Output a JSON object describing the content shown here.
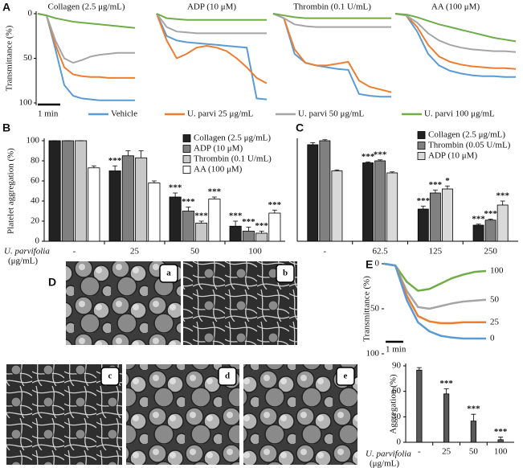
{
  "panel_labels": [
    "A",
    "B",
    "C",
    "D",
    "E"
  ],
  "chart_data": [
    {
      "type": "multiline",
      "ylabel": "Transmittance (%)",
      "ylim": [
        0,
        100
      ],
      "yticks": [
        0,
        50,
        100
      ],
      "inverted": true,
      "scale_bar": "1 min",
      "series": [
        {
          "name": "Vehicle",
          "color": "#5b9bd5"
        },
        {
          "name": "U. parvi 25 μg/mL",
          "color": "#ed7d31"
        },
        {
          "name": "U. parvi 50 μg/mL",
          "color": "#a5a5a5"
        },
        {
          "name": "U. parvi 100 μg/mL",
          "color": "#70ad47"
        }
      ],
      "panels": [
        {
          "title": "Collagen (2.5 μg/mL)",
          "values": [
            [
              0,
              2,
              40,
              80,
              92,
              95,
              96,
              97,
              97,
              97,
              97,
              97
            ],
            [
              0,
              2,
              35,
              60,
              68,
              70,
              71,
              71,
              72,
              72,
              72,
              72
            ],
            [
              0,
              2,
              30,
              50,
              55,
              52,
              48,
              46,
              45,
              44,
              44,
              44
            ],
            [
              0,
              2,
              5,
              7,
              9,
              10,
              11,
              12,
              13,
              14,
              15,
              16
            ]
          ]
        },
        {
          "title": "ADP (10 μM)",
          "values": [
            [
              0,
              25,
              30,
              32,
              33,
              34,
              35,
              36,
              37,
              38,
              95,
              96
            ],
            [
              0,
              30,
              50,
              45,
              38,
              36,
              38,
              42,
              50,
              60,
              72,
              78
            ],
            [
              0,
              15,
              20,
              21,
              22,
              22,
              22,
              22,
              22,
              22,
              22,
              22
            ],
            [
              0,
              5,
              6,
              7,
              7,
              7,
              7,
              7,
              7,
              7,
              7,
              7
            ]
          ]
        },
        {
          "title": "Thrombin (0.1 U/mL)",
          "values": [
            [
              0,
              5,
              45,
              55,
              58,
              60,
              62,
              63,
              90,
              92,
              93,
              93
            ],
            [
              0,
              5,
              40,
              55,
              58,
              58,
              56,
              54,
              75,
              82,
              85,
              88
            ],
            [
              0,
              5,
              12,
              14,
              15,
              15,
              15,
              15,
              15,
              15,
              15,
              15
            ],
            [
              0,
              2,
              4,
              5,
              5,
              5,
              5,
              5,
              5,
              5,
              5,
              5
            ]
          ]
        },
        {
          "title": "AA (100 μM)",
          "values": [
            [
              0,
              2,
              20,
              45,
              58,
              64,
              67,
              69,
              70,
              70,
              71,
              71
            ],
            [
              0,
              2,
              15,
              35,
              48,
              54,
              57,
              59,
              60,
              61,
              61,
              62
            ],
            [
              0,
              2,
              10,
              22,
              30,
              35,
              38,
              40,
              41,
              42,
              42,
              43
            ],
            [
              0,
              1,
              4,
              8,
              12,
              15,
              18,
              21,
              24,
              27,
              29,
              31
            ]
          ]
        }
      ]
    },
    {
      "type": "bar",
      "ylabel": "Platelet aggregation (%)",
      "xlabel": "U. parvifolia",
      "xlabel_unit": "(μg/mL)",
      "categories": [
        "-",
        "25",
        "50",
        "100"
      ],
      "ylim": [
        0,
        100
      ],
      "yticks": [
        0,
        20,
        40,
        60,
        80,
        100
      ],
      "legend": "upper right",
      "series": [
        {
          "name": "Collagen (2.5  μg/mL)",
          "color": "#222222",
          "values": [
            100,
            70,
            44,
            15
          ],
          "errors": [
            0,
            5,
            4,
            5
          ],
          "sig": [
            null,
            "***",
            "***",
            "***"
          ]
        },
        {
          "name": "ADP (10  μM)",
          "color": "#808080",
          "values": [
            100,
            85,
            30,
            10
          ],
          "errors": [
            0,
            5,
            4,
            4
          ],
          "sig": [
            null,
            null,
            "***",
            "***"
          ]
        },
        {
          "name": "Thrombin (0.1 U/mL)",
          "color": "#c8c8c8",
          "values": [
            100,
            83,
            18,
            8
          ],
          "errors": [
            0,
            7,
            2,
            2
          ],
          "sig": [
            null,
            null,
            "***",
            "***"
          ]
        },
        {
          "name": "AA (100 μM)",
          "color": "#ffffff",
          "values": [
            73,
            58,
            42,
            28
          ],
          "errors": [
            2,
            2,
            2,
            3
          ],
          "sig": [
            null,
            null,
            "***",
            "***"
          ]
        }
      ]
    },
    {
      "type": "bar",
      "categories": [
        "-",
        "62.5",
        "125",
        "250"
      ],
      "ylim": [
        0,
        100
      ],
      "legend": "upper right",
      "series": [
        {
          "name": "Collagen (2.5 μg/mL)",
          "color": "#222222",
          "values": [
            96,
            78,
            32,
            16
          ],
          "errors": [
            2,
            1,
            3,
            1
          ],
          "sig": [
            null,
            "***",
            "***",
            "***"
          ]
        },
        {
          "name": "Thrombin (0.05 U/mL)",
          "color": "#808080",
          "values": [
            100,
            80,
            48,
            21
          ],
          "errors": [
            1,
            1,
            3,
            1
          ],
          "sig": [
            null,
            "***",
            "***",
            "***"
          ]
        },
        {
          "name": "ADP (10 μM)",
          "color": "#d9d9d9",
          "values": [
            70,
            68,
            52,
            36
          ],
          "errors": [
            1,
            1,
            3,
            4
          ],
          "sig": [
            null,
            null,
            "*",
            "***"
          ]
        }
      ]
    },
    {
      "type": "line",
      "ylabel": "Transmittance (%)",
      "ylim": [
        0,
        100
      ],
      "yticks": [
        0,
        50,
        100
      ],
      "inverted": true,
      "scale_bar": "1 min",
      "series": [
        {
          "name": "100",
          "color": "#70ad47",
          "values": [
            0,
            2,
            20,
            30,
            28,
            22,
            16,
            12,
            9,
            8
          ]
        },
        {
          "name": "50",
          "color": "#a5a5a5",
          "values": [
            0,
            2,
            30,
            48,
            50,
            47,
            44,
            42,
            41,
            40
          ]
        },
        {
          "name": "25",
          "color": "#ed7d31",
          "values": [
            0,
            2,
            35,
            58,
            64,
            66,
            66,
            65,
            65,
            65
          ]
        },
        {
          "name": "0",
          "color": "#5b9bd5",
          "values": [
            0,
            2,
            40,
            65,
            75,
            80,
            82,
            83,
            83,
            83
          ]
        }
      ]
    },
    {
      "type": "bar",
      "ylabel": "Aggregation (%)",
      "xlabel": "U. parvifolia",
      "xlabel_unit": "(μg/mL)",
      "categories": [
        "-",
        "25",
        "50",
        "100"
      ],
      "ylim": [
        0,
        90
      ],
      "yticks": [
        0,
        30,
        60,
        90
      ],
      "series": [
        {
          "color": "#595959",
          "values": [
            85,
            57,
            25,
            3
          ],
          "errors": [
            3,
            6,
            8,
            3
          ],
          "sig": [
            null,
            "***",
            "***",
            "***"
          ]
        }
      ]
    }
  ],
  "images": [
    {
      "label": "a"
    },
    {
      "label": "b"
    },
    {
      "label": "c"
    },
    {
      "label": "d"
    },
    {
      "label": "e"
    }
  ]
}
